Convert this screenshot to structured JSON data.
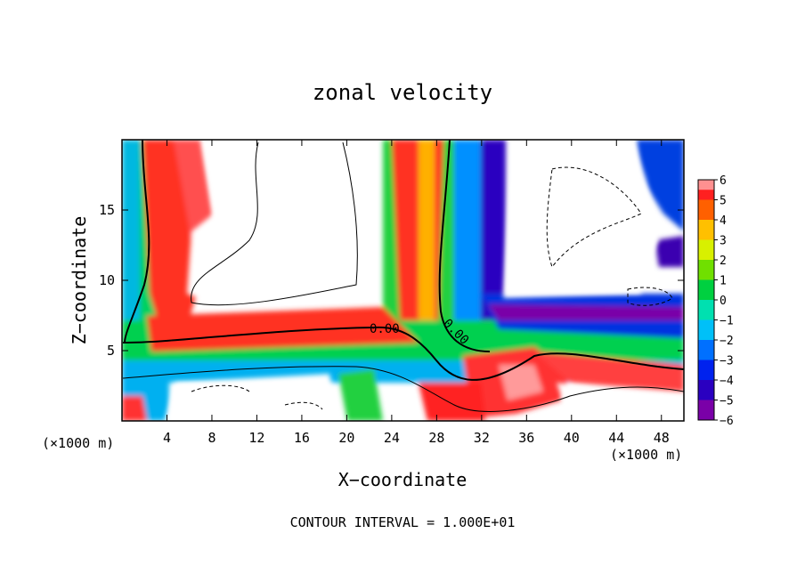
{
  "chart_data": {
    "type": "heatmap",
    "title": "zonal velocity",
    "xlabel": "X−coordinate",
    "ylabel": "Z−coordinate",
    "x_unit_label": "(×1000 m)",
    "z_unit_label": "(×1000 m)",
    "xlim": [
      0,
      50
    ],
    "ylim": [
      0,
      20
    ],
    "x_ticks": [
      4,
      8,
      12,
      16,
      20,
      24,
      28,
      32,
      36,
      40,
      44,
      48
    ],
    "x_tick_labels": [
      "4",
      "8",
      "12",
      "16",
      "20",
      "24",
      "28",
      "32",
      "36",
      "40",
      "44",
      "48"
    ],
    "y_ticks": [
      5,
      10,
      15
    ],
    "y_tick_labels": [
      "5",
      "10",
      "15"
    ],
    "colorbar": {
      "levels": [
        -6,
        -5,
        -4,
        -3,
        -2,
        -1,
        0,
        1,
        2,
        3,
        4,
        5,
        6
      ],
      "labels": [
        "−6",
        "−5",
        "−4",
        "−3",
        "−2",
        "−1",
        "0",
        "1",
        "2",
        "3",
        "4",
        "5",
        "6"
      ],
      "colors": [
        "#7a00a8",
        "#2a00c0",
        "#0022ee",
        "#0070ff",
        "#00c0f8",
        "#00e0b0",
        "#00d040",
        "#70e000",
        "#d8f000",
        "#ffc000",
        "#ff6000",
        "#ff2020",
        "#ff9090"
      ]
    },
    "contour_labels": [
      "0.00",
      "0.00"
    ],
    "footer": "CONTOUR INTERVAL = 1.000E+01"
  }
}
